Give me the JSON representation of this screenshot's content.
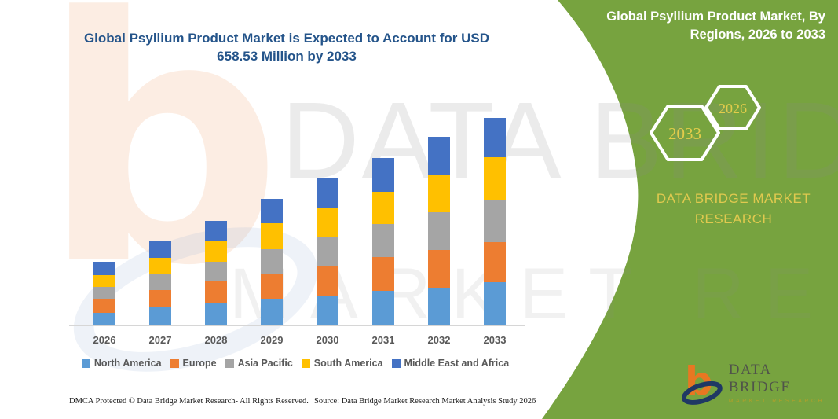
{
  "colors": {
    "panel_green": "#77A33F",
    "title_blue": "#24548A",
    "accent_yellow": "#E3CC4B",
    "axis_gray": "#d6d6d6"
  },
  "main_title": {
    "line1": "Global Psyllium Product Market is Expected to Account for USD",
    "line2": "658.53 Million by 2033"
  },
  "right_panel": {
    "title": "Global Psyllium Product Market, By Regions, 2026 to 2033",
    "hexagons": [
      {
        "label": "2033"
      },
      {
        "label": "2026"
      }
    ],
    "brand_text": "DATA BRIDGE MARKET RESEARCH"
  },
  "chart_data": {
    "type": "bar",
    "stacked": true,
    "unit": "USD Million",
    "categories": [
      "2026",
      "2027",
      "2028",
      "2029",
      "2030",
      "2031",
      "2032",
      "2033"
    ],
    "series": [
      {
        "name": "North America",
        "color": "#5B9BD5",
        "values": [
          38.3,
          56.8,
          69.4,
          81.9,
          91.9,
          108.4,
          118.4,
          135.2
        ]
      },
      {
        "name": "Europe",
        "color": "#ED7D31",
        "values": [
          43.3,
          54.3,
          66.9,
          79.4,
          93.4,
          105.9,
          118.4,
          126.9
        ]
      },
      {
        "name": "Asia Pacific",
        "color": "#A5A5A5",
        "values": [
          37.6,
          50.1,
          62.6,
          77.6,
          93.4,
          106.9,
          120.9,
          136.0
        ]
      },
      {
        "name": "South America",
        "color": "#FFC000",
        "values": [
          39.3,
          50.1,
          66.9,
          83.4,
          91.9,
          101.9,
          117.7,
          133.5
        ]
      },
      {
        "name": "Middle East and Africa",
        "color": "#4472C4",
        "values": [
          40.8,
          55.1,
          64.1,
          76.9,
          94.4,
          106.9,
          122.7,
          126.9
        ]
      }
    ],
    "totals": [
      199.3,
      266.4,
      329.9,
      399.2,
      465.0,
      530.0,
      598.1,
      658.5
    ],
    "ylim": [
      0,
      680
    ],
    "grid": false,
    "legend_position": "bottom"
  },
  "watermark": {
    "glyph": "b",
    "line1": "DATA BRIDGE",
    "line2": "MARKET RESEARCH"
  },
  "footer": {
    "dmca": "DMCA Protected © Data Bridge Market Research-  All Rights Reserved.",
    "source": "Source: Data Bridge Market Research  Market Analysis Study 2026"
  },
  "logo": {
    "name": "DATA BRIDGE",
    "sub": "MARKET RESEARCH"
  }
}
